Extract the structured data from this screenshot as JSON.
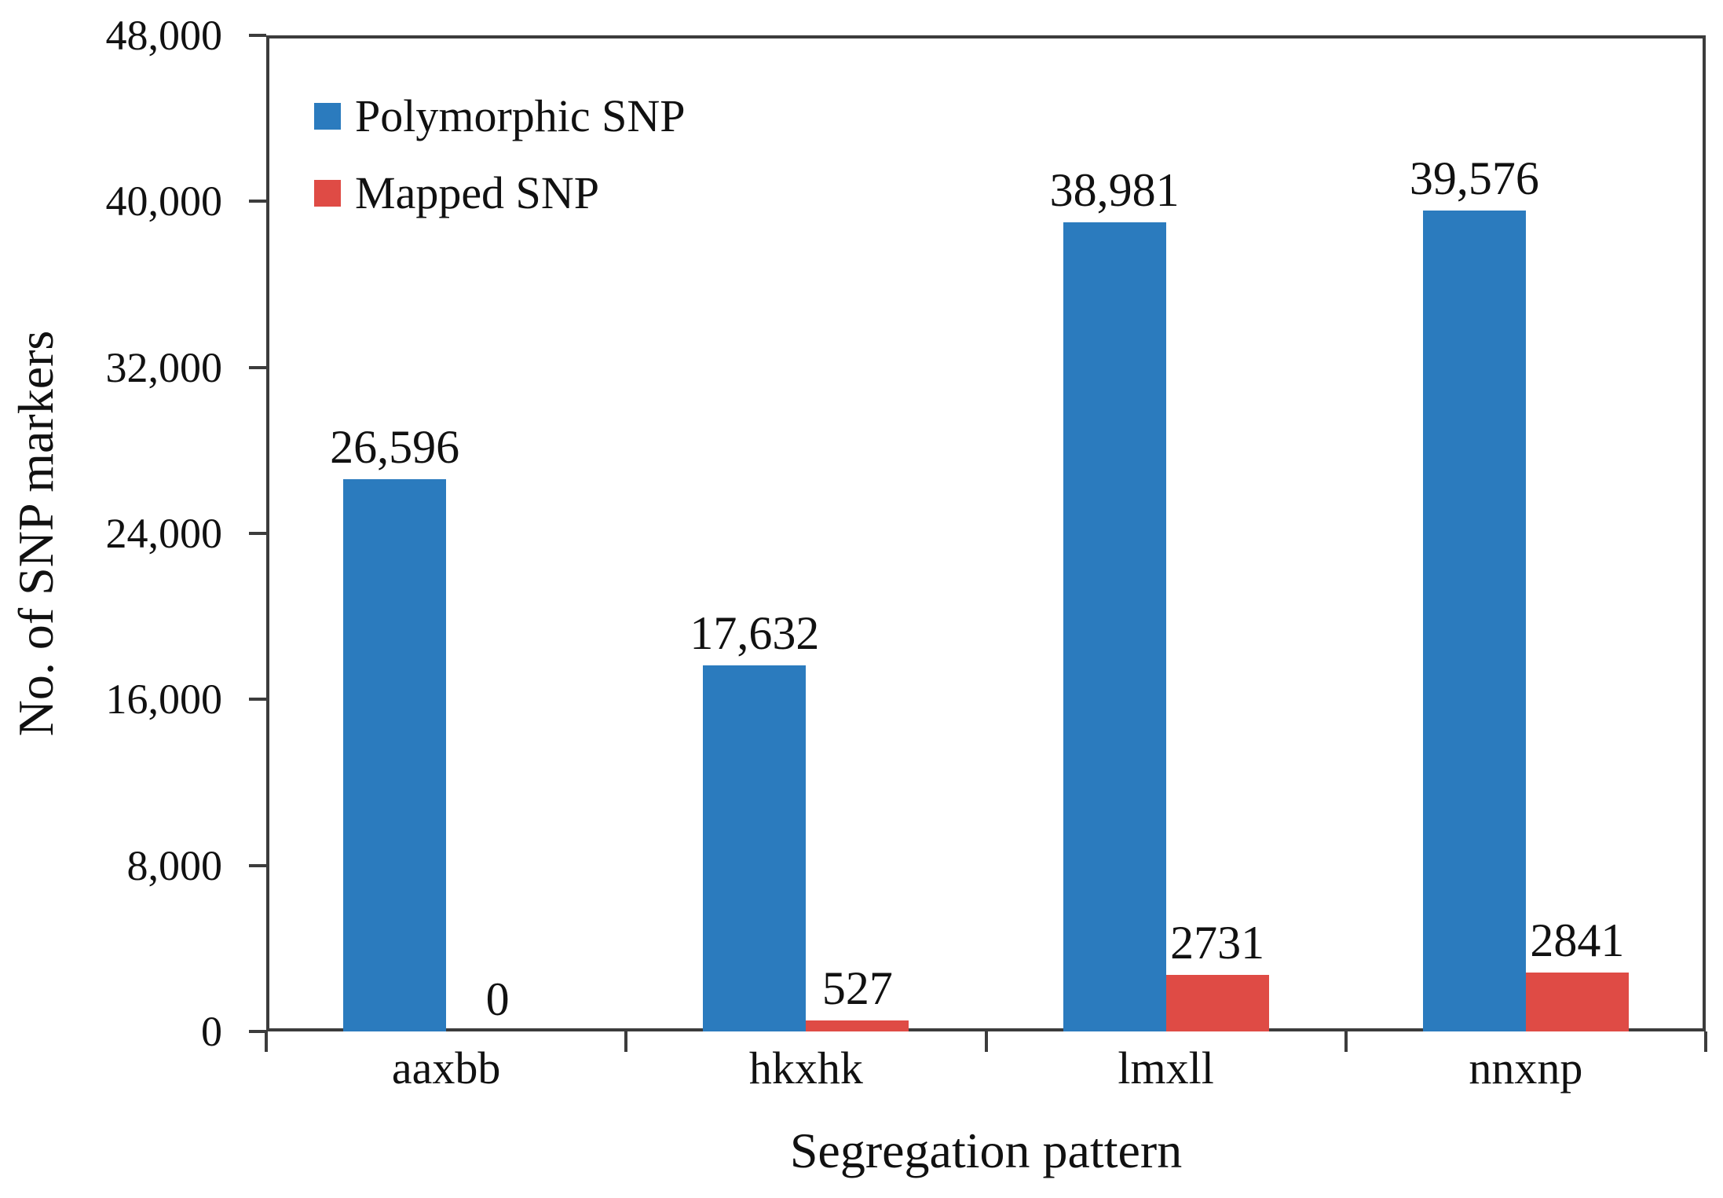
{
  "chart_data": {
    "type": "bar",
    "title": "",
    "xlabel": "Segregation pattern",
    "ylabel": "No. of SNP markers",
    "categories": [
      "aaxbb",
      "hkxhk",
      "lmxll",
      "nnxnp"
    ],
    "series": [
      {
        "name": "Polymorphic SNP",
        "color": "#2B7BBE",
        "values": [
          26596,
          17632,
          38981,
          39576
        ],
        "labels": [
          "26,596",
          "17,632",
          "38,981",
          "39,576"
        ]
      },
      {
        "name": "Mapped SNP",
        "color": "#DF4B45",
        "values": [
          0,
          527,
          2731,
          2841
        ],
        "labels": [
          "0",
          "527",
          "2731",
          "2841"
        ]
      }
    ],
    "ylim": [
      0,
      48000
    ],
    "ytick_step": 8000,
    "ytick_labels": [
      "0",
      "8,000",
      "16,000",
      "24,000",
      "32,000",
      "40,000",
      "48,000"
    ],
    "grid": false,
    "legend_position": "inside-top-left",
    "plot_border": "full-box",
    "axis_color": "#3c3c3c"
  }
}
